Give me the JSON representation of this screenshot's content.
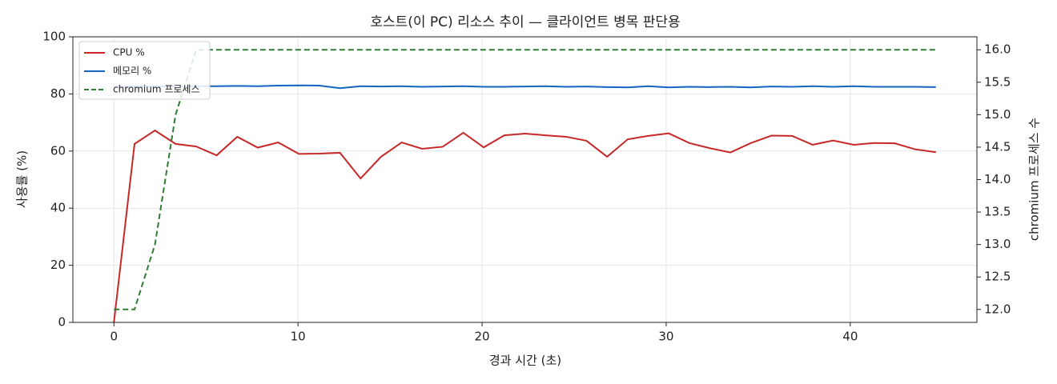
{
  "chart_data": {
    "type": "line",
    "title": "호스트(이 PC) 리소스 추이 — 클라이언트 병목 판단용",
    "x_label": "경과 시간 (초)",
    "y_label": "사용률 (%)",
    "y2_label": "chromium 프로세스 수",
    "x": [
      0,
      1.12,
      2.23,
      3.35,
      4.47,
      5.58,
      6.7,
      7.81,
      8.93,
      10.05,
      11.16,
      12.28,
      13.4,
      14.51,
      15.63,
      16.74,
      17.86,
      18.98,
      20.09,
      21.21,
      22.33,
      23.44,
      24.56,
      25.67,
      26.79,
      27.91,
      29.02,
      30.14,
      31.26,
      32.37,
      33.49,
      34.6,
      35.72,
      36.84,
      37.95,
      39.07,
      40.19,
      41.3,
      42.42,
      43.53,
      44.65
    ],
    "series": [
      {
        "name": "CPU %",
        "color": "#c62828",
        "style": "solid",
        "axis": "y",
        "values": [
          0,
          62.5,
          67.2,
          62.5,
          61.6,
          58.5,
          65.0,
          61.2,
          63.0,
          59.0,
          59.1,
          59.4,
          50.4,
          58.0,
          63.0,
          60.8,
          61.5,
          66.4,
          61.3,
          65.5,
          66.1,
          65.5,
          65.0,
          63.6,
          58.0,
          64.1,
          65.3,
          66.2,
          62.8,
          61.0,
          59.5,
          62.8,
          65.4,
          65.3,
          62.2,
          63.7,
          62.2,
          62.8,
          62.7,
          60.6,
          59.6
        ]
      },
      {
        "name": "메모리 %",
        "color": "#1565c0",
        "style": "solid",
        "axis": "y",
        "values": [
          82.5,
          82.6,
          82.6,
          82.7,
          82.7,
          82.7,
          82.8,
          82.7,
          82.9,
          83.0,
          82.9,
          82.0,
          82.7,
          82.6,
          82.7,
          82.5,
          82.6,
          82.7,
          82.5,
          82.5,
          82.6,
          82.7,
          82.5,
          82.6,
          82.4,
          82.3,
          82.7,
          82.3,
          82.5,
          82.4,
          82.5,
          82.3,
          82.6,
          82.5,
          82.7,
          82.5,
          82.7,
          82.5,
          82.5,
          82.5,
          82.4
        ]
      },
      {
        "name": "chromium 프로세스",
        "color": "#2e7d32",
        "style": "dashed",
        "axis": "y2",
        "values": [
          12,
          12,
          13,
          15,
          16,
          16,
          16,
          16,
          16,
          16,
          16,
          16,
          16,
          16,
          16,
          16,
          16,
          16,
          16,
          16,
          16,
          16,
          16,
          16,
          16,
          16,
          16,
          16,
          16,
          16,
          16,
          16,
          16,
          16,
          16,
          16,
          16,
          16,
          16,
          16,
          16
        ]
      }
    ],
    "xlim": [
      -2.23,
      46.88
    ],
    "xticks": [
      0,
      10,
      20,
      30,
      40
    ],
    "ylim": [
      0,
      100
    ],
    "yticks": [
      0,
      20,
      40,
      60,
      80,
      100
    ],
    "y2lim": [
      11.8,
      16.2
    ],
    "y2ticks": [
      {
        "value": 12,
        "label": "12.0"
      },
      {
        "value": 12.5,
        "label": "12.5"
      },
      {
        "value": 13,
        "label": "13.0"
      },
      {
        "value": 13.5,
        "label": "13.5"
      },
      {
        "value": 14,
        "label": "14.0"
      },
      {
        "value": 14.5,
        "label": "14.5"
      },
      {
        "value": 15,
        "label": "15.0"
      },
      {
        "value": 15.5,
        "label": "15.5"
      },
      {
        "value": 16,
        "label": "16.0"
      }
    ],
    "grid": true,
    "legend": "upper-left"
  }
}
